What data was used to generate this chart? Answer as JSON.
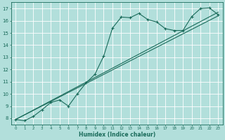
{
  "xlabel": "Humidex (Indice chaleur)",
  "ylabel": "",
  "bg_color": "#b2dfdb",
  "grid_color": "#ffffff",
  "line_color": "#1a6b5a",
  "xlim": [
    -0.5,
    23.5
  ],
  "ylim": [
    7.5,
    17.5
  ],
  "xticks": [
    0,
    1,
    2,
    3,
    4,
    5,
    6,
    7,
    8,
    9,
    10,
    11,
    12,
    13,
    14,
    15,
    16,
    17,
    18,
    19,
    20,
    21,
    22,
    23
  ],
  "yticks": [
    8,
    9,
    10,
    11,
    12,
    13,
    14,
    15,
    16,
    17
  ],
  "line1_x": [
    0,
    1,
    2,
    3,
    4,
    5,
    6,
    7,
    8,
    9,
    10,
    11,
    12,
    13,
    14,
    15,
    16,
    17,
    18,
    19,
    20,
    21,
    22,
    23
  ],
  "line1_y": [
    7.9,
    7.8,
    8.15,
    8.7,
    9.3,
    9.5,
    9.0,
    10.0,
    10.9,
    11.6,
    13.1,
    15.4,
    16.3,
    16.25,
    16.6,
    16.1,
    15.9,
    15.35,
    15.2,
    15.2,
    16.35,
    17.0,
    17.05,
    16.5
  ],
  "line2_x": [
    0,
    23
  ],
  "line2_y": [
    7.9,
    16.7
  ],
  "line3_x": [
    0,
    23
  ],
  "line3_y": [
    7.9,
    16.4
  ]
}
